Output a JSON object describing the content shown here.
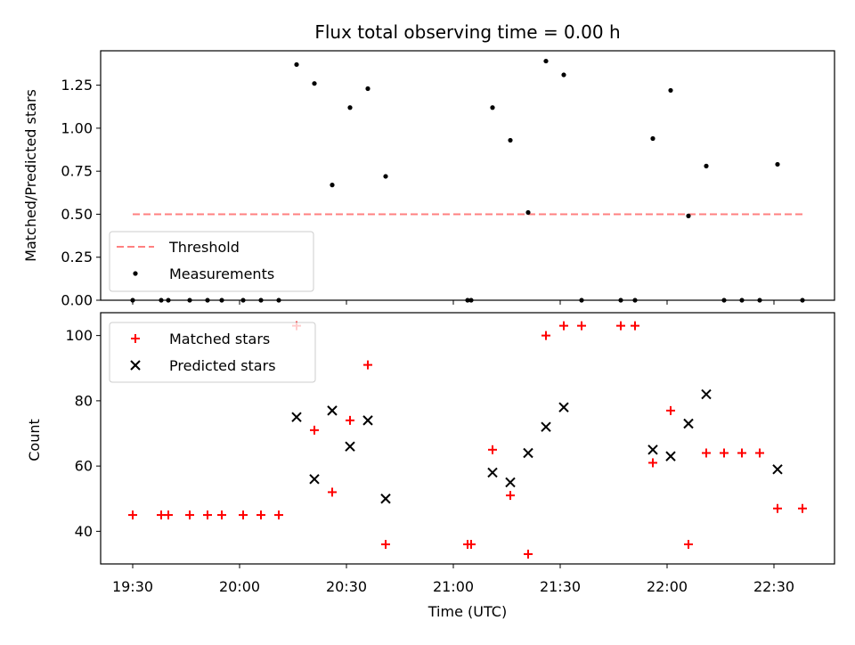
{
  "chart_data": [
    {
      "type": "scatter",
      "title": "Flux total observing time = 0.00 h",
      "xlabel": "",
      "ylabel": "Matched/Predicted stars",
      "ylim": [
        0,
        1.45
      ],
      "yticks": [
        "0.00",
        "0.25",
        "0.50",
        "0.75",
        "1.00",
        "1.25"
      ],
      "legend_position": "lower-left",
      "threshold": {
        "name": "Threshold",
        "value": 0.5,
        "x": [
          0,
          188
        ],
        "color": "#ff8080",
        "style": "dashed"
      },
      "series": [
        {
          "name": "Measurements",
          "color": "#000000",
          "marker": "dot",
          "points": [
            [
              0,
              0
            ],
            [
              8,
              0
            ],
            [
              10,
              0
            ],
            [
              16,
              0
            ],
            [
              21,
              0
            ],
            [
              25,
              0
            ],
            [
              31,
              0
            ],
            [
              36,
              0
            ],
            [
              41,
              0
            ],
            [
              46,
              1.37
            ],
            [
              51,
              1.26
            ],
            [
              56,
              0.67
            ],
            [
              61,
              1.12
            ],
            [
              66,
              1.23
            ],
            [
              71,
              0.72
            ],
            [
              94,
              0
            ],
            [
              95,
              0
            ],
            [
              101,
              1.12
            ],
            [
              106,
              0.93
            ],
            [
              111,
              0.51
            ],
            [
              116,
              1.39
            ],
            [
              121,
              1.31
            ],
            [
              126,
              0
            ],
            [
              137,
              0
            ],
            [
              141,
              0
            ],
            [
              146,
              0.94
            ],
            [
              151,
              1.22
            ],
            [
              156,
              0.49
            ],
            [
              161,
              0.78
            ],
            [
              166,
              0
            ],
            [
              171,
              0
            ],
            [
              176,
              0
            ],
            [
              181,
              0.79
            ],
            [
              188,
              0
            ]
          ]
        }
      ]
    },
    {
      "type": "scatter",
      "title": "",
      "xlabel": "Time (UTC)",
      "ylabel": "Count",
      "ylim": [
        30,
        107
      ],
      "yticks": [
        "40",
        "60",
        "80",
        "100"
      ],
      "xticks": [
        {
          "label": "19:30",
          "minutes": 0
        },
        {
          "label": "20:00",
          "minutes": 30
        },
        {
          "label": "20:30",
          "minutes": 60
        },
        {
          "label": "21:00",
          "minutes": 90
        },
        {
          "label": "21:30",
          "minutes": 120
        },
        {
          "label": "22:00",
          "minutes": 150
        },
        {
          "label": "22:30",
          "minutes": 180
        }
      ],
      "xlim_minutes": [
        -9,
        197
      ],
      "legend_position": "top-left",
      "series": [
        {
          "name": "Matched stars",
          "color": "#ff0000",
          "marker": "plus",
          "points": [
            [
              0,
              45
            ],
            [
              8,
              45
            ],
            [
              10,
              45
            ],
            [
              16,
              45
            ],
            [
              21,
              45
            ],
            [
              25,
              45
            ],
            [
              31,
              45
            ],
            [
              36,
              45
            ],
            [
              41,
              45
            ],
            [
              46,
              103
            ],
            [
              51,
              71
            ],
            [
              56,
              52
            ],
            [
              61,
              74
            ],
            [
              66,
              91
            ],
            [
              71,
              36
            ],
            [
              94,
              36
            ],
            [
              95,
              36
            ],
            [
              101,
              65
            ],
            [
              106,
              51
            ],
            [
              111,
              33
            ],
            [
              116,
              100
            ],
            [
              121,
              103
            ],
            [
              126,
              103
            ],
            [
              137,
              103
            ],
            [
              141,
              103
            ],
            [
              146,
              61
            ],
            [
              151,
              77
            ],
            [
              156,
              36
            ],
            [
              161,
              64
            ],
            [
              166,
              64
            ],
            [
              171,
              64
            ],
            [
              176,
              64
            ],
            [
              181,
              47
            ],
            [
              188,
              47
            ]
          ]
        },
        {
          "name": "Predicted stars",
          "color": "#000000",
          "marker": "x",
          "points": [
            [
              46,
              75
            ],
            [
              51,
              56
            ],
            [
              56,
              77
            ],
            [
              61,
              66
            ],
            [
              66,
              74
            ],
            [
              71,
              50
            ],
            [
              101,
              58
            ],
            [
              106,
              55
            ],
            [
              111,
              64
            ],
            [
              116,
              72
            ],
            [
              121,
              78
            ],
            [
              146,
              65
            ],
            [
              151,
              63
            ],
            [
              156,
              73
            ],
            [
              161,
              82
            ],
            [
              181,
              59
            ]
          ]
        }
      ]
    }
  ]
}
